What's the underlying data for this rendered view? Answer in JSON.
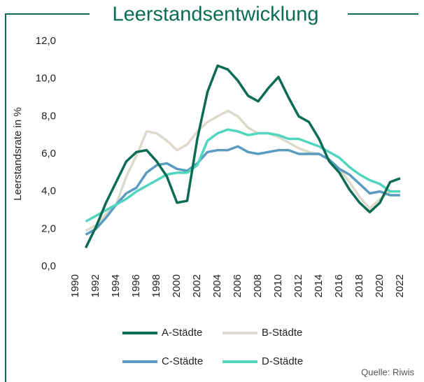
{
  "chart_data": {
    "type": "line",
    "title": "Leerstandsentwicklung",
    "y_label": "Leerstandsrate in %",
    "source": "Quelle: Riwis",
    "x": [
      1991,
      1992,
      1993,
      1994,
      1995,
      1996,
      1997,
      1998,
      1999,
      2000,
      2001,
      2002,
      2003,
      2004,
      2005,
      2006,
      2007,
      2008,
      2009,
      2010,
      2011,
      2012,
      2013,
      2014,
      2015,
      2016,
      2017,
      2018,
      2019,
      2020,
      2021,
      2022
    ],
    "xlim": [
      1990,
      2022
    ],
    "xticks": [
      1990,
      1992,
      1994,
      1996,
      1998,
      2000,
      2002,
      2004,
      2006,
      2008,
      2010,
      2012,
      2014,
      2016,
      2018,
      2020,
      2022
    ],
    "ylim": [
      0,
      12
    ],
    "yticks": [
      {
        "value": 0,
        "label": "0,0"
      },
      {
        "value": 2,
        "label": "2,0"
      },
      {
        "value": 4,
        "label": "4,0"
      },
      {
        "value": 6,
        "label": "6,0"
      },
      {
        "value": 8,
        "label": "8,0"
      },
      {
        "value": 10,
        "label": "10,0"
      },
      {
        "value": 12,
        "label": "12,0"
      }
    ],
    "grid": false,
    "legend": "bottom",
    "series": [
      {
        "name": "A-Städte",
        "color": "#0b6b53",
        "values": [
          1.0,
          2.1,
          3.4,
          4.5,
          5.6,
          6.1,
          6.2,
          5.6,
          4.8,
          3.4,
          3.5,
          6.8,
          9.3,
          10.7,
          10.5,
          9.9,
          9.1,
          8.8,
          9.5,
          10.1,
          9.0,
          8.0,
          7.7,
          6.8,
          5.6,
          5.0,
          4.1,
          3.4,
          2.9,
          3.4,
          4.5,
          4.7
        ]
      },
      {
        "name": "B-Städte",
        "color": "#ddd9cc",
        "values": [
          1.9,
          2.2,
          2.8,
          3.3,
          4.8,
          5.9,
          7.2,
          7.1,
          6.7,
          6.2,
          6.5,
          7.2,
          7.7,
          8.0,
          8.3,
          8.0,
          7.4,
          7.1,
          7.1,
          6.9,
          6.6,
          6.3,
          6.1,
          6.0,
          5.7,
          5.2,
          4.5,
          3.7,
          3.1,
          3.6,
          4.0,
          4.0
        ]
      },
      {
        "name": "C-Städte",
        "color": "#5b9bc0",
        "values": [
          1.7,
          2.0,
          2.6,
          3.3,
          3.9,
          4.2,
          5.0,
          5.4,
          5.5,
          5.2,
          5.1,
          5.5,
          6.1,
          6.2,
          6.2,
          6.4,
          6.1,
          6.0,
          6.1,
          6.2,
          6.2,
          6.0,
          6.0,
          6.0,
          5.7,
          5.2,
          4.9,
          4.4,
          3.9,
          4.0,
          3.8,
          3.8
        ]
      },
      {
        "name": "D-Städte",
        "color": "#4fd6bd",
        "values": [
          2.4,
          2.7,
          3.0,
          3.3,
          3.6,
          4.0,
          4.3,
          4.6,
          4.9,
          5.0,
          5.0,
          5.4,
          6.7,
          7.1,
          7.3,
          7.2,
          7.0,
          7.1,
          7.1,
          7.0,
          6.8,
          6.8,
          6.6,
          6.4,
          6.1,
          5.8,
          5.3,
          4.9,
          4.6,
          4.4,
          4.0,
          4.0
        ]
      }
    ]
  }
}
